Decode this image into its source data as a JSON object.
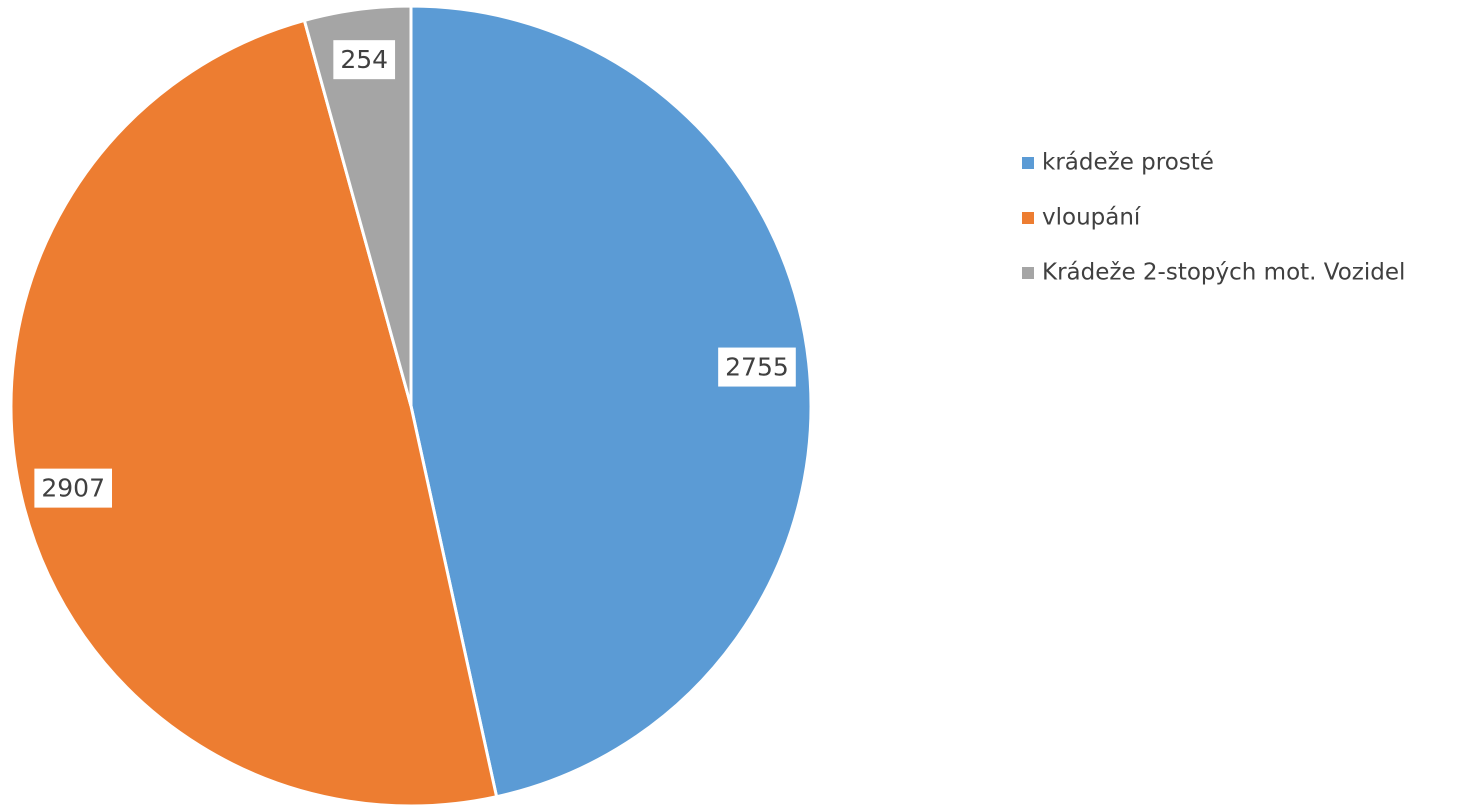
{
  "chart_data": {
    "type": "pie",
    "categories": [
      "krádeže prosté",
      "vloupání",
      "Krádeže 2-stopých mot. Vozidel"
    ],
    "values": [
      2755,
      2907,
      254
    ],
    "colors": [
      "#5b9bd5",
      "#ed7d31",
      "#a5a5a5"
    ],
    "legend": "right"
  }
}
